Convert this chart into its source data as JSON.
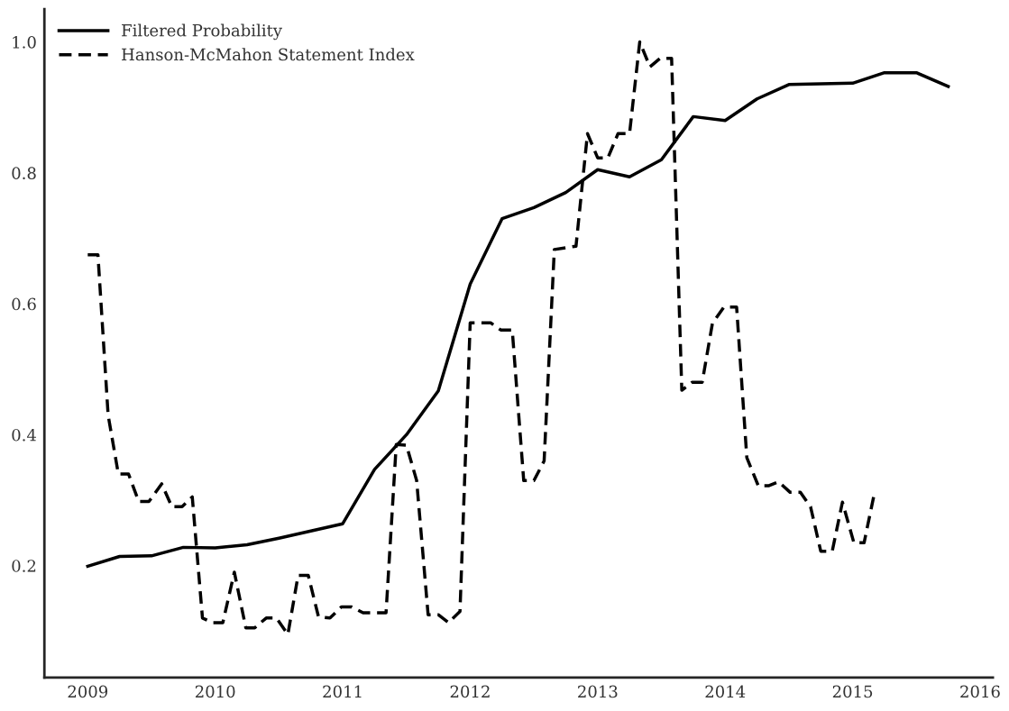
{
  "chart_data": {
    "type": "line",
    "xlim": [
      2008.66,
      2016.1
    ],
    "xticks": [
      2009,
      2010,
      2011,
      2012,
      2013,
      2014,
      2015,
      2016
    ],
    "ylim": [
      0.029,
      1.05
    ],
    "yticks": [
      0.2,
      0.4,
      0.6,
      0.8,
      {
        "value": 1,
        "label": "1.0"
      }
    ],
    "grid": false,
    "legend": "top left",
    "marker": "none",
    "series": [
      {
        "name": "Filtered Probability",
        "color": "#000000",
        "line_style": "solid",
        "x": [
          2009.0,
          2009.25,
          2009.5,
          2009.75,
          2010.0,
          2010.25,
          2010.5,
          2010.75,
          2011.0,
          2011.25,
          2011.5,
          2011.75,
          2012.0,
          2012.25,
          2012.5,
          2012.75,
          2013.0,
          2013.25,
          2013.5,
          2013.75,
          2014.0,
          2014.25,
          2014.5,
          2014.75,
          2015.0,
          2015.25,
          2015.5,
          2015.75
        ],
        "values": [
          0.199,
          0.214,
          0.215,
          0.228,
          0.227,
          0.232,
          0.242,
          0.253,
          0.264,
          0.347,
          0.4,
          0.467,
          0.63,
          0.73,
          0.747,
          0.77,
          0.805,
          0.794,
          0.82,
          0.886,
          0.88,
          0.913,
          0.935,
          0.936,
          0.937,
          0.953,
          0.953,
          0.932
        ]
      },
      {
        "name": "Hanson-McMahon Statement Index",
        "color": "#000000",
        "line_style": "dashed",
        "x": [
          2009.0,
          2009.08,
          2009.16,
          2009.24,
          2009.32,
          2009.4,
          2009.48,
          2009.58,
          2009.66,
          2009.74,
          2009.82,
          2009.9,
          2009.98,
          2010.06,
          2010.15,
          2010.24,
          2010.31,
          2010.4,
          2010.48,
          2010.57,
          2010.65,
          2010.73,
          2010.81,
          2010.9,
          2010.99,
          2011.07,
          2011.16,
          2011.34,
          2011.42,
          2011.5,
          2011.58,
          2011.67,
          2011.75,
          2011.83,
          2011.92,
          2012.0,
          2012.16,
          2012.24,
          2012.33,
          2012.42,
          2012.5,
          2012.58,
          2012.66,
          2012.83,
          2012.92,
          2013.0,
          2013.08,
          2013.16,
          2013.25,
          2013.33,
          2013.41,
          2013.49,
          2013.58,
          2013.66,
          2013.74,
          2013.82,
          2013.9,
          2013.99,
          2014.09,
          2014.17,
          2014.26,
          2014.34,
          2014.42,
          2014.51,
          2014.59,
          2014.67,
          2014.75,
          2014.84,
          2014.92,
          2015.01,
          2015.09,
          2015.17
        ],
        "values": [
          0.675,
          0.675,
          0.43,
          0.34,
          0.34,
          0.298,
          0.298,
          0.325,
          0.29,
          0.29,
          0.305,
          0.12,
          0.113,
          0.113,
          0.19,
          0.105,
          0.105,
          0.12,
          0.12,
          0.095,
          0.185,
          0.185,
          0.122,
          0.12,
          0.137,
          0.137,
          0.128,
          0.128,
          0.385,
          0.384,
          0.33,
          0.125,
          0.125,
          0.113,
          0.13,
          0.571,
          0.571,
          0.56,
          0.56,
          0.33,
          0.33,
          0.36,
          0.683,
          0.688,
          0.86,
          0.823,
          0.823,
          0.86,
          0.86,
          1.0,
          0.962,
          0.975,
          0.975,
          0.468,
          0.48,
          0.48,
          0.57,
          0.595,
          0.595,
          0.365,
          0.322,
          0.322,
          0.328,
          0.312,
          0.312,
          0.29,
          0.222,
          0.222,
          0.297,
          0.235,
          0.235,
          0.31
        ]
      }
    ]
  }
}
